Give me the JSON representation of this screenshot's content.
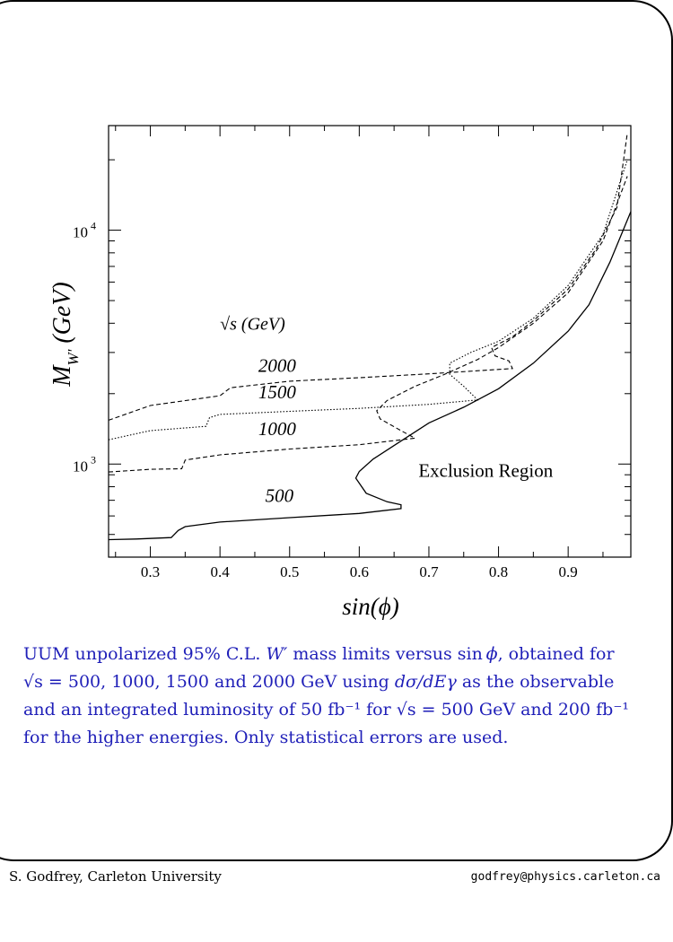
{
  "chart_data": {
    "type": "line",
    "title": "",
    "xlabel": "sin(ϕ)",
    "ylabel": "M",
    "ylabel_sub": "W'",
    "ylabel_unit": "(GeV)",
    "xlim": [
      0.24,
      0.99
    ],
    "ylim": [
      400,
      28000
    ],
    "yscale": "log",
    "x_ticks": [
      "0.3",
      "0.4",
      "0.5",
      "0.6",
      "0.7",
      "0.8",
      "0.9"
    ],
    "y_ticks": [
      {
        "base": "10",
        "exp": "3",
        "value": 1000
      },
      {
        "base": "10",
        "exp": "4",
        "value": 10000
      }
    ],
    "legend_title": "√s (GeV)",
    "region_label": "Exclusion Region",
    "series": [
      {
        "name": "500",
        "style": "solid",
        "points": [
          [
            0.24,
            475
          ],
          [
            0.28,
            478
          ],
          [
            0.33,
            485
          ],
          [
            0.34,
            520
          ],
          [
            0.35,
            540
          ],
          [
            0.4,
            565
          ],
          [
            0.5,
            590
          ],
          [
            0.6,
            615
          ],
          [
            0.66,
            645
          ],
          [
            0.66,
            670
          ],
          [
            0.64,
            690
          ],
          [
            0.61,
            750
          ],
          [
            0.595,
            870
          ],
          [
            0.6,
            930
          ],
          [
            0.62,
            1050
          ],
          [
            0.65,
            1200
          ],
          [
            0.7,
            1500
          ],
          [
            0.75,
            1750
          ],
          [
            0.8,
            2100
          ],
          [
            0.85,
            2700
          ],
          [
            0.9,
            3700
          ],
          [
            0.93,
            4800
          ],
          [
            0.96,
            7300
          ],
          [
            0.99,
            12000
          ]
        ]
      },
      {
        "name": "1000",
        "style": "dashed",
        "points": [
          [
            0.24,
            925
          ],
          [
            0.3,
            950
          ],
          [
            0.345,
            955
          ],
          [
            0.35,
            1040
          ],
          [
            0.4,
            1095
          ],
          [
            0.5,
            1160
          ],
          [
            0.6,
            1210
          ],
          [
            0.68,
            1290
          ],
          [
            0.66,
            1390
          ],
          [
            0.63,
            1560
          ],
          [
            0.625,
            1690
          ],
          [
            0.64,
            1870
          ],
          [
            0.68,
            2150
          ],
          [
            0.72,
            2400
          ],
          [
            0.77,
            2800
          ],
          [
            0.8,
            3150
          ],
          [
            0.85,
            4000
          ],
          [
            0.9,
            5400
          ],
          [
            0.95,
            9000
          ],
          [
            0.985,
            17000
          ]
        ]
      },
      {
        "name": "1500",
        "style": "dotted",
        "points": [
          [
            0.24,
            1270
          ],
          [
            0.3,
            1390
          ],
          [
            0.38,
            1450
          ],
          [
            0.385,
            1580
          ],
          [
            0.4,
            1630
          ],
          [
            0.5,
            1680
          ],
          [
            0.6,
            1730
          ],
          [
            0.7,
            1800
          ],
          [
            0.77,
            1880
          ],
          [
            0.75,
            2150
          ],
          [
            0.73,
            2420
          ],
          [
            0.73,
            2700
          ],
          [
            0.76,
            3000
          ],
          [
            0.8,
            3350
          ],
          [
            0.85,
            4200
          ],
          [
            0.9,
            5800
          ],
          [
            0.95,
            9600
          ],
          [
            0.985,
            20000
          ]
        ]
      },
      {
        "name": "2000",
        "style": "dashed",
        "points": [
          [
            0.24,
            1540
          ],
          [
            0.3,
            1780
          ],
          [
            0.4,
            1960
          ],
          [
            0.415,
            2120
          ],
          [
            0.5,
            2260
          ],
          [
            0.6,
            2340
          ],
          [
            0.7,
            2430
          ],
          [
            0.82,
            2560
          ],
          [
            0.815,
            2760
          ],
          [
            0.795,
            2900
          ],
          [
            0.79,
            3150
          ],
          [
            0.82,
            3500
          ],
          [
            0.85,
            4100
          ],
          [
            0.9,
            5600
          ],
          [
            0.94,
            8300
          ],
          [
            0.97,
            12500
          ],
          [
            0.985,
            26000
          ]
        ]
      }
    ],
    "line_labels": [
      {
        "text": "2000",
        "x": 0.455,
        "y": 2480
      },
      {
        "text": "1500",
        "x": 0.455,
        "y": 1910
      },
      {
        "text": "1000",
        "x": 0.455,
        "y": 1330
      },
      {
        "text": "500",
        "x": 0.465,
        "y": 690
      }
    ]
  },
  "caption": {
    "line1_a": "UUM unpolarized 95% C.L. ",
    "line1_w": "W′",
    "line1_b": " mass limits versus sin ",
    "line1_phi": "ϕ",
    "line1_c": ", obtained for",
    "line2_a": "√s = 500, 1000, 1500 and 2000 GeV using ",
    "line2_obs": "dσ/dEγ",
    "line2_b": " as the observable",
    "line3": "and an integrated luminosity of 50 fb⁻¹ for √s = 500 GeV and 200 fb⁻¹",
    "line4": "for the higher energies. Only statistical errors are used."
  },
  "footer": {
    "author": "S. Godfrey, Carleton University",
    "email": "godfrey@physics.carleton.ca"
  }
}
